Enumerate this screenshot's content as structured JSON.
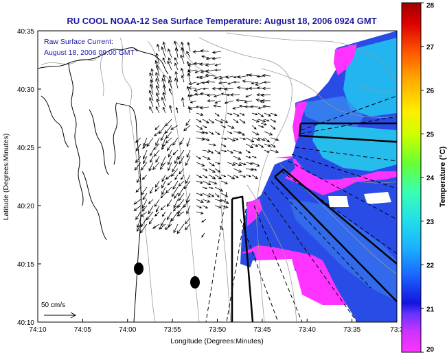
{
  "title": "RU COOL  NOAA-12  Sea Surface Temperature:  August 18, 2006 0924 GMT",
  "inset": {
    "line1": "Raw Surface Current:",
    "line2": "August 18, 2006 09:00 GMT"
  },
  "scale_label": "50 cm/s",
  "axes": {
    "xlabel": "Longitude (Degrees:Minutes)",
    "ylabel": "Latitude (Degrees:Minutes)",
    "x_ticks": [
      "74:10",
      "74:05",
      "74:00",
      "73:55",
      "73:50",
      "73:45",
      "73:40",
      "73:35",
      "73:3"
    ],
    "y_ticks": [
      "40:35",
      "40:30",
      "40:25",
      "40:20",
      "40:15",
      "40:10"
    ]
  },
  "colorbar": {
    "label": "Temperature (°C)",
    "ticks": [
      "28",
      "27",
      "26",
      "25",
      "24",
      "23",
      "22",
      "21",
      "20"
    ],
    "min": 20,
    "max": 28,
    "colors": [
      "#ff00ff",
      "#cc00ff",
      "#6600ff",
      "#0000ff",
      "#0066ff",
      "#00ccff",
      "#00ffcc",
      "#66ff00",
      "#ffff00",
      "#ffaa00",
      "#ff5500",
      "#cc0000",
      "#990000"
    ]
  },
  "colors": {
    "title": "#1a1aa0",
    "sst_blue": "#2a4ce6",
    "sst_magenta": "#ff33ff",
    "sst_cyan": "#2ad6f0"
  }
}
